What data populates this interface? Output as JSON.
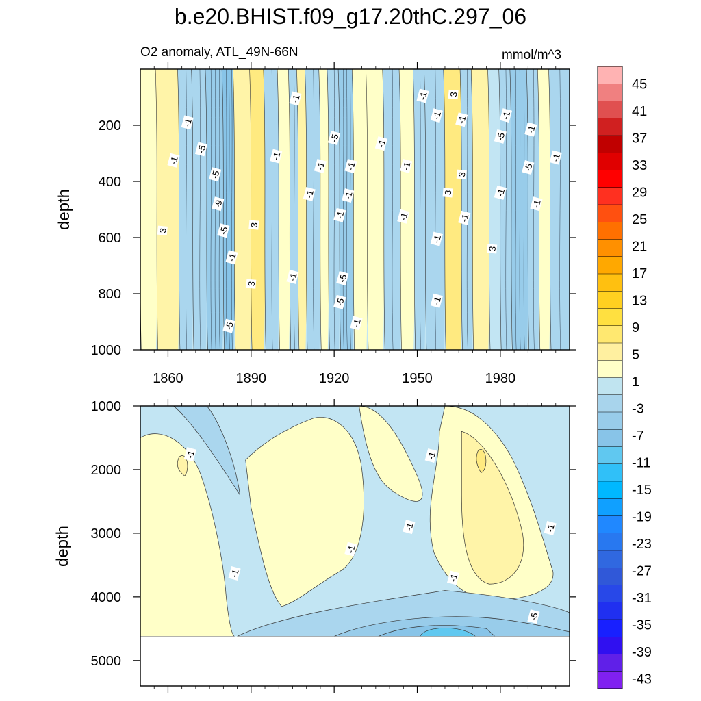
{
  "chart_data": {
    "type": "heatmap",
    "title": "b.e20.BHIST.f09_g17.20thC.297_06",
    "subtitle_left": "O2 anomaly, ATL_49N-66N",
    "subtitle_right": "mmol/m^3",
    "ylabel": "depth",
    "x_range": [
      1850,
      2005
    ],
    "x_ticks": [
      "1860",
      "1890",
      "1920",
      "1950",
      "1980"
    ],
    "x_tick_values": [
      1860,
      1890,
      1920,
      1950,
      1980
    ],
    "upper_panel": {
      "ylim": [
        0,
        1000
      ],
      "y_ticks": [
        "200",
        "400",
        "600",
        "800",
        "1000"
      ],
      "y_tick_values": [
        200,
        400,
        600,
        800,
        1000
      ],
      "bands": [
        {
          "x0": 1850,
          "x1": 1856,
          "v": 1
        },
        {
          "x0": 1856,
          "x1": 1864,
          "v": 3
        },
        {
          "x0": 1864,
          "x1": 1869,
          "v": -3
        },
        {
          "x0": 1869,
          "x1": 1874,
          "v": -3
        },
        {
          "x0": 1874,
          "x1": 1880,
          "v": -5
        },
        {
          "x0": 1880,
          "x1": 1884,
          "v": -7
        },
        {
          "x0": 1884,
          "x1": 1890,
          "v": 3
        },
        {
          "x0": 1890,
          "x1": 1895,
          "v": 5
        },
        {
          "x0": 1895,
          "x1": 1900,
          "v": -3
        },
        {
          "x0": 1900,
          "x1": 1904,
          "v": 1
        },
        {
          "x0": 1904,
          "x1": 1907,
          "v": -3
        },
        {
          "x0": 1907,
          "x1": 1910,
          "v": 3
        },
        {
          "x0": 1910,
          "x1": 1915,
          "v": -3
        },
        {
          "x0": 1915,
          "x1": 1918,
          "v": 1
        },
        {
          "x0": 1918,
          "x1": 1922,
          "v": -3
        },
        {
          "x0": 1922,
          "x1": 1927,
          "v": -5
        },
        {
          "x0": 1927,
          "x1": 1932,
          "v": 1
        },
        {
          "x0": 1932,
          "x1": 1938,
          "v": 1
        },
        {
          "x0": 1938,
          "x1": 1944,
          "v": -3
        },
        {
          "x0": 1944,
          "x1": 1949,
          "v": 1
        },
        {
          "x0": 1949,
          "x1": 1953,
          "v": -3
        },
        {
          "x0": 1953,
          "x1": 1960,
          "v": -3
        },
        {
          "x0": 1960,
          "x1": 1966,
          "v": 5
        },
        {
          "x0": 1966,
          "x1": 1970,
          "v": -3
        },
        {
          "x0": 1970,
          "x1": 1976,
          "v": 3
        },
        {
          "x0": 1976,
          "x1": 1980,
          "v": -1
        },
        {
          "x0": 1980,
          "x1": 1984,
          "v": -3
        },
        {
          "x0": 1984,
          "x1": 1990,
          "v": -5
        },
        {
          "x0": 1990,
          "x1": 1994,
          "v": -3
        },
        {
          "x0": 1994,
          "x1": 1998,
          "v": 1
        },
        {
          "x0": 1998,
          "x1": 2005,
          "v": -3
        }
      ],
      "contour_labels": [
        {
          "x": 1858,
          "y": 575,
          "t": "3"
        },
        {
          "x": 1862,
          "y": 325,
          "t": "-1"
        },
        {
          "x": 1867,
          "y": 190,
          "t": "-1"
        },
        {
          "x": 1872,
          "y": 285,
          "t": "-5"
        },
        {
          "x": 1877,
          "y": 375,
          "t": "-5"
        },
        {
          "x": 1878,
          "y": 480,
          "t": "-9"
        },
        {
          "x": 1880,
          "y": 575,
          "t": "-5"
        },
        {
          "x": 1883,
          "y": 670,
          "t": "-1"
        },
        {
          "x": 1882,
          "y": 915,
          "t": "-5"
        },
        {
          "x": 1891,
          "y": 555,
          "t": "3"
        },
        {
          "x": 1890,
          "y": 765,
          "t": "3"
        },
        {
          "x": 1899,
          "y": 310,
          "t": "-1"
        },
        {
          "x": 1906,
          "y": 105,
          "t": "-1"
        },
        {
          "x": 1905,
          "y": 740,
          "t": "-1"
        },
        {
          "x": 1911,
          "y": 445,
          "t": "-1"
        },
        {
          "x": 1915,
          "y": 345,
          "t": "-1"
        },
        {
          "x": 1920,
          "y": 245,
          "t": "-5"
        },
        {
          "x": 1922,
          "y": 520,
          "t": "-1"
        },
        {
          "x": 1923,
          "y": 745,
          "t": "-5"
        },
        {
          "x": 1922,
          "y": 830,
          "t": "-5"
        },
        {
          "x": 1926,
          "y": 345,
          "t": "-1"
        },
        {
          "x": 1925,
          "y": 450,
          "t": "-1"
        },
        {
          "x": 1928,
          "y": 905,
          "t": "-1"
        },
        {
          "x": 1937,
          "y": 265,
          "t": "-1"
        },
        {
          "x": 1946,
          "y": 345,
          "t": "-1"
        },
        {
          "x": 1945,
          "y": 525,
          "t": "-1"
        },
        {
          "x": 1952,
          "y": 95,
          "t": "-1"
        },
        {
          "x": 1957,
          "y": 165,
          "t": "-1"
        },
        {
          "x": 1957,
          "y": 605,
          "t": "-1"
        },
        {
          "x": 1957,
          "y": 825,
          "t": "-1"
        },
        {
          "x": 1963,
          "y": 90,
          "t": "3"
        },
        {
          "x": 1966,
          "y": 180,
          "t": "-1"
        },
        {
          "x": 1966,
          "y": 375,
          "t": "3"
        },
        {
          "x": 1961,
          "y": 440,
          "t": "3"
        },
        {
          "x": 1967,
          "y": 530,
          "t": "-1"
        },
        {
          "x": 1977,
          "y": 640,
          "t": "3"
        },
        {
          "x": 1980,
          "y": 240,
          "t": "-5"
        },
        {
          "x": 1982,
          "y": 165,
          "t": "-1"
        },
        {
          "x": 1980,
          "y": 440,
          "t": "-1"
        },
        {
          "x": 1991,
          "y": 215,
          "t": "-1"
        },
        {
          "x": 1990,
          "y": 350,
          "t": "-5"
        },
        {
          "x": 1993,
          "y": 480,
          "t": "-1"
        },
        {
          "x": 2000,
          "y": 315,
          "t": "-1"
        }
      ]
    },
    "lower_panel": {
      "ylim": [
        1000,
        5400
      ],
      "y_ticks": [
        "1000",
        "2000",
        "3000",
        "4000",
        "5000"
      ],
      "y_tick_values": [
        1000,
        2000,
        3000,
        4000,
        5000
      ],
      "no_data_below": 4620,
      "contour_labels": [
        {
          "x": 1868,
          "y": 1760,
          "t": "-1"
        },
        {
          "x": 1955,
          "y": 1780,
          "t": "-1"
        },
        {
          "x": 1947,
          "y": 2900,
          "t": "-1"
        },
        {
          "x": 1926,
          "y": 3250,
          "t": "-1"
        },
        {
          "x": 1884,
          "y": 3630,
          "t": "-1"
        },
        {
          "x": 1963,
          "y": 3700,
          "t": "-1"
        },
        {
          "x": 1998,
          "y": 2920,
          "t": "-1"
        },
        {
          "x": 1992,
          "y": 4310,
          "t": "-5"
        }
      ]
    },
    "colorbar": {
      "labels": [
        "45",
        "41",
        "37",
        "33",
        "29",
        "25",
        "21",
        "17",
        "13",
        "9",
        "5",
        "1",
        "-3",
        "-7",
        "-11",
        "-15",
        "-19",
        "-23",
        "-27",
        "-31",
        "-35",
        "-39",
        "-43"
      ],
      "colors": [
        "#FFB3B3",
        "#F08080",
        "#E05050",
        "#D02020",
        "#C00000",
        "#E00000",
        "#FF0000",
        "#FF3020",
        "#FF5010",
        "#FF7000",
        "#FF9000",
        "#FFA800",
        "#FFC010",
        "#FFD020",
        "#FFE040",
        "#FFE870",
        "#FFF0A0",
        "#FFFFC8",
        "#C0E4F0",
        "#A8D4EC",
        "#98CCEA",
        "#88C4E8",
        "#60C8F0",
        "#30C0F8",
        "#00B8FF",
        "#10A0FF",
        "#2088FF",
        "#2878F0",
        "#3068E0",
        "#3058D8",
        "#2848E8",
        "#2030F0",
        "#1820FF",
        "#3010F0",
        "#6020E8",
        "#8020F0"
      ]
    },
    "palette": {
      "v-9": "#74B9E4",
      "v-7": "#88C4E8",
      "v-5": "#98CCEA",
      "v-3": "#AAD6EE",
      "v-1": "#C2E5F3",
      "v1": "#FFFFC8",
      "v3": "#FFF4A8",
      "v5": "#FFEA80"
    }
  }
}
